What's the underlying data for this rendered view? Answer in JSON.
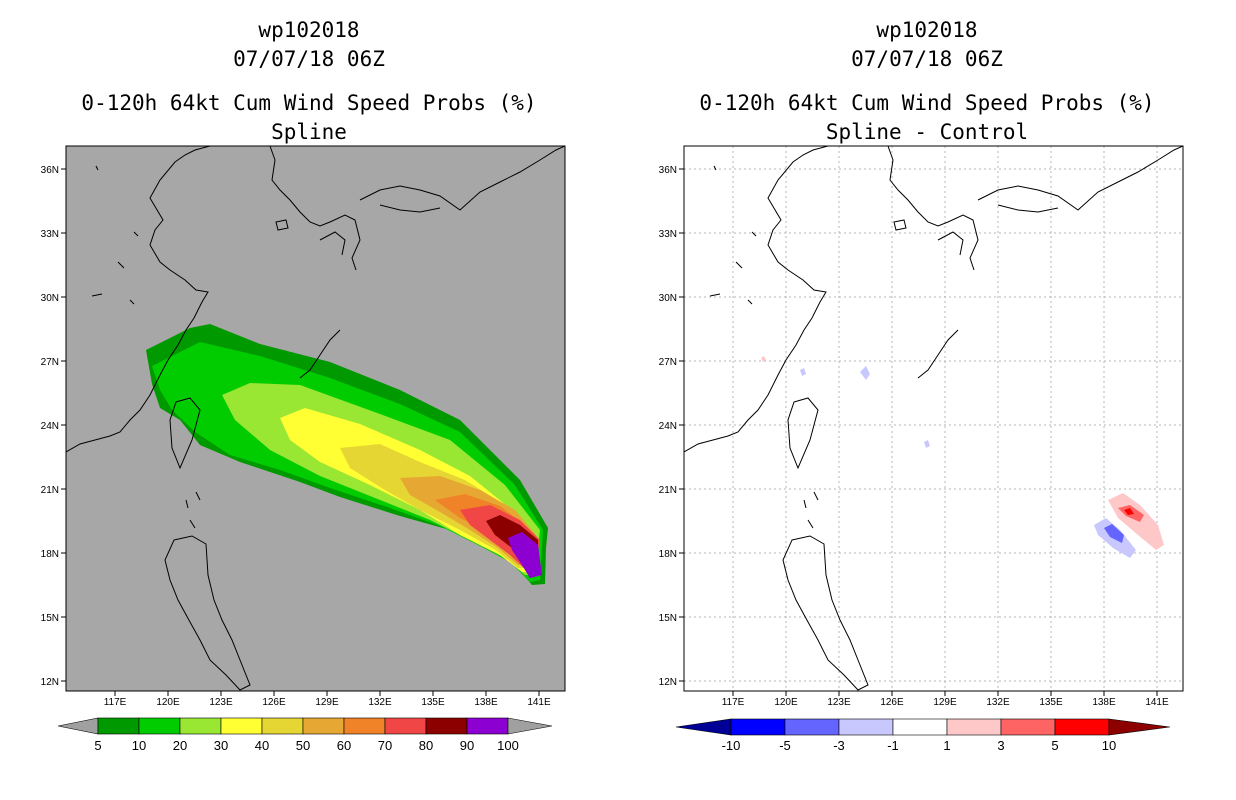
{
  "left": {
    "title1": "wp102018",
    "title2": "07/07/18 06Z",
    "title3": "0-120h 64kt Cum Wind Speed Probs (%)",
    "title4": "Spline",
    "lat_labels": [
      "36N",
      "33N",
      "30N",
      "27N",
      "24N",
      "21N",
      "18N",
      "15N",
      "12N"
    ],
    "lon_labels": [
      "117E",
      "120E",
      "123E",
      "126E",
      "129E",
      "132E",
      "135E",
      "138E",
      "141E"
    ],
    "colorbar": {
      "labels": [
        "5",
        "10",
        "20",
        "30",
        "40",
        "50",
        "60",
        "70",
        "80",
        "90",
        "100"
      ],
      "colors": [
        "#009900",
        "#00cc00",
        "#99e633",
        "#ffff33",
        "#e6d633",
        "#e6a833",
        "#f08228",
        "#f04646",
        "#8c0000",
        "#8c00d2"
      ],
      "below_color": "#a0a0a0",
      "above_color": "#a0a0a0"
    },
    "background_color": "#a7a7a7"
  },
  "right": {
    "title1": "wp102018",
    "title2": "07/07/18 06Z",
    "title3": "0-120h 64kt Cum Wind Speed Probs (%)",
    "title4": "Spline - Control",
    "lat_labels": [
      "36N",
      "33N",
      "30N",
      "27N",
      "24N",
      "21N",
      "18N",
      "15N",
      "12N"
    ],
    "lon_labels": [
      "117E",
      "120E",
      "123E",
      "126E",
      "129E",
      "132E",
      "135E",
      "138E",
      "141E"
    ],
    "colorbar": {
      "labels": [
        "-10",
        "-5",
        "-3",
        "-1",
        "1",
        "3",
        "5",
        "10"
      ],
      "colors": [
        "#0000ff",
        "#6464ff",
        "#c8c8ff",
        "#ffffff",
        "#ffc8c8",
        "#ff6464",
        "#ff0000"
      ],
      "below_color": "#000096",
      "above_color": "#8c0000"
    },
    "background_color": "#ffffff"
  }
}
